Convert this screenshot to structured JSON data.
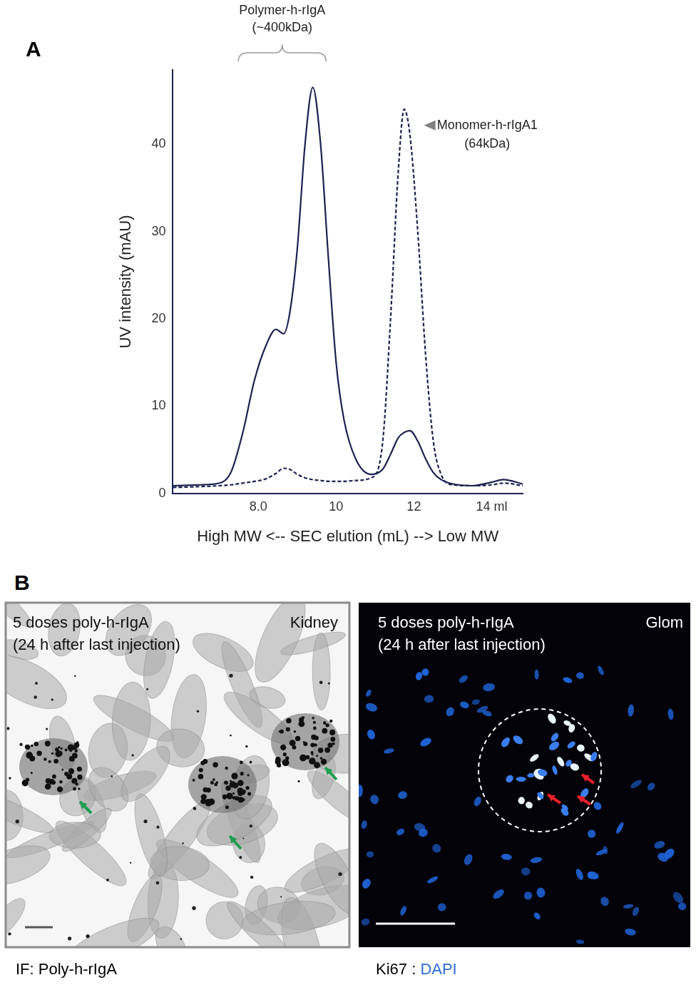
{
  "chart_data": {
    "type": "line",
    "panel": "A",
    "x_label": "High MW <-- SEC elution (mL) --> Low MW",
    "y_label": "UV intensity (mAU)",
    "annotations": [
      {
        "text": [
          "Polymer-h-rIgA",
          "(~400kDa)"
        ]
      },
      {
        "text": [
          "Monomer-h-rIgA1",
          "(64kDa)"
        ]
      }
    ],
    "xlim": [
      5.8,
      14.8
    ],
    "xticks": [
      {
        "value": 8,
        "label": "8.0"
      },
      10,
      12,
      {
        "value": 14,
        "label": "14 ml"
      }
    ],
    "ylim": [
      0,
      48.5
    ],
    "yticks": [
      0,
      10,
      20,
      30,
      40
    ],
    "grid": false,
    "x": [
      5.8,
      6.5,
      7.0,
      7.3,
      7.6,
      7.9,
      8.2,
      8.45,
      8.65,
      8.8,
      9.0,
      9.2,
      9.4,
      9.6,
      9.8,
      10.0,
      10.2,
      10.5,
      10.9,
      11.2,
      11.4,
      11.6,
      11.75,
      11.9,
      12.1,
      12.3,
      12.5,
      12.7,
      13.0,
      13.5,
      14.0,
      14.3,
      14.8
    ],
    "series": [
      {
        "color": "#1c2150",
        "line_style": "solid",
        "values": [
          0.9,
          1.0,
          1.2,
          2.5,
          7,
          13,
          17,
          18.8,
          18.3,
          20.5,
          28,
          40,
          46.5,
          40,
          27,
          15,
          8.5,
          4,
          2.2,
          2.8,
          4.5,
          6.4,
          7.0,
          7.2,
          6.0,
          4.0,
          2.4,
          1.6,
          1.1,
          0.9,
          1.3,
          1.6,
          1.1
        ]
      },
      {
        "color": "#1c2150",
        "line_style": "dashed",
        "values": [
          0.7,
          0.8,
          0.9,
          1.0,
          1.2,
          1.4,
          1.7,
          2.3,
          2.9,
          2.8,
          2.2,
          1.8,
          1.6,
          1.5,
          1.4,
          1.4,
          1.4,
          1.5,
          1.8,
          6,
          20,
          37,
          44,
          41,
          30,
          16,
          6,
          2.2,
          1.0,
          0.9,
          1.0,
          1.2,
          0.9
        ]
      }
    ]
  },
  "panel_b": {
    "letter": "B",
    "images": [
      {
        "header": [
          "5 doses poly-h-rIgA",
          "(24 h after last injection)"
        ],
        "corner": "Kidney",
        "caption": [
          {
            "text": "IF: Poly-h-rIgA",
            "color": "#000000"
          }
        ]
      },
      {
        "header": [
          "5 doses poly-h-rIgA",
          "(24 h after last injection)"
        ],
        "corner": "Glom",
        "caption": [
          {
            "text": "Ki67 : ",
            "color": "#000000"
          },
          {
            "text": "DAPI",
            "color": "#2f6fd6"
          }
        ]
      }
    ]
  }
}
